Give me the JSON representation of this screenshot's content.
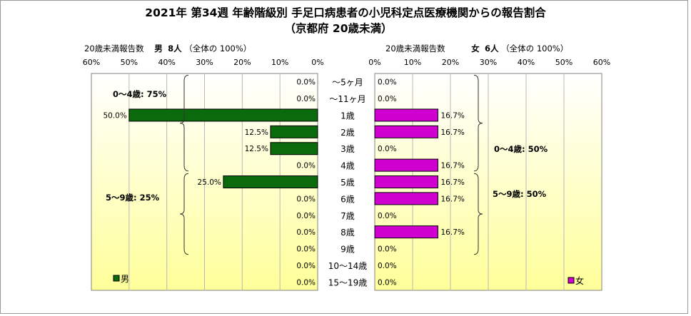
{
  "title": "2021年 第34週 年齢階級別 手足口病患者の小児科定点医療機関からの報告割合",
  "subtitle": "（京都府 20歳未満）",
  "male_header": {
    "label": "20歳未満報告数",
    "sex": "男",
    "count": "8人",
    "total": "（全体の 100%）"
  },
  "female_header": {
    "label": "20歳未満報告数",
    "sex": "女",
    "count": "6人",
    "total": "（全体の 100%）"
  },
  "colors": {
    "male": "#0b6a0b",
    "female": "#d000d0",
    "panel_top": "#ffffff",
    "panel_bottom": "#ffff99"
  },
  "chart_data": {
    "type": "bar",
    "categories": [
      "～5ヶ月",
      "～11ヶ月",
      "1歳",
      "2歳",
      "3歳",
      "4歳",
      "5歳",
      "6歳",
      "7歳",
      "8歳",
      "9歳",
      "10～14歳",
      "15～19歳"
    ],
    "series": [
      {
        "name": "男",
        "values": [
          0.0,
          0.0,
          50.0,
          12.5,
          12.5,
          0.0,
          25.0,
          0.0,
          0.0,
          0.0,
          0.0,
          0.0,
          0.0
        ]
      },
      {
        "name": "女",
        "values": [
          0.0,
          0.0,
          16.7,
          16.7,
          0.0,
          16.7,
          16.7,
          16.7,
          0.0,
          16.7,
          0.0,
          0.0,
          0.0
        ]
      }
    ],
    "value_labels": {
      "male": [
        "0.0%",
        "0.0%",
        "50.0%",
        "12.5%",
        "12.5%",
        "0.0%",
        "25.0%",
        "0.0%",
        "0.0%",
        "0.0%",
        "0.0%",
        "0.0%",
        "0.0%"
      ],
      "female": [
        "0.0%",
        "0.0%",
        "16.7%",
        "16.7%",
        "0.0%",
        "16.7%",
        "16.7%",
        "16.7%",
        "0.0%",
        "16.7%",
        "0.0%",
        "0.0%",
        "0.0%"
      ]
    },
    "xlim": [
      0,
      60
    ],
    "ticks_male": [
      "60%",
      "50%",
      "40%",
      "30%",
      "20%",
      "10%",
      "0%"
    ],
    "ticks_female": [
      "0%",
      "10%",
      "20%",
      "30%",
      "40%",
      "50%",
      "60%"
    ],
    "legend": {
      "male": "男",
      "female": "女",
      "placement": "bottom"
    },
    "annotations": {
      "male_0_4": "0～4歳: 75%",
      "male_5_9": "5～9歳: 25%",
      "female_0_4": "0～4歳: 50%",
      "female_5_9": "5～9歳: 50%"
    }
  }
}
